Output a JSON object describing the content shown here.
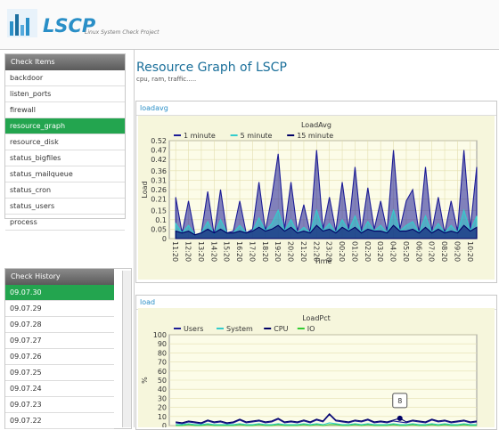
{
  "header": {
    "logo": "LSCP",
    "subtitle": "Linux System Check Project"
  },
  "check_items": {
    "title": "Check Items",
    "items": [
      "backdoor",
      "listen_ports",
      "firewall",
      "resource_graph",
      "resource_disk",
      "status_bigfiles",
      "status_mailqueue",
      "status_cron",
      "status_users",
      "process"
    ],
    "selected": 3
  },
  "check_history": {
    "title": "Check History",
    "items": [
      "09.07.30",
      "09.07.29",
      "09.07.28",
      "09.07.27",
      "09.07.26",
      "09.07.25",
      "09.07.24",
      "09.07.23",
      "09.07.22"
    ],
    "selected": 0
  },
  "main": {
    "title": "Resource Graph of LSCP",
    "subtitle": "cpu, ram, traffic....."
  },
  "panels": [
    "loadavg",
    "load"
  ],
  "chart_data": [
    {
      "type": "area",
      "title": "LoadAvg",
      "xlabel": "Time",
      "ylabel": "Load",
      "grid": true,
      "x": [
        0,
        0.5,
        1,
        1.5,
        2,
        2.5,
        3,
        3.5,
        4,
        4.5,
        5,
        5.5,
        6,
        6.5,
        7,
        7.5,
        8,
        8.5,
        9,
        9.5,
        10,
        10.5,
        11,
        11.5,
        12,
        12.5,
        13,
        13.5,
        14,
        14.5,
        15,
        15.5,
        16,
        16.5,
        17,
        17.5,
        18,
        18.5,
        19,
        19.5,
        20,
        20.5,
        21,
        21.5,
        22,
        22.5,
        23,
        23.5
      ],
      "xlim": [
        -0.5,
        23.5
      ],
      "xticks": [
        {
          "value": 0,
          "label": "11:20"
        },
        {
          "value": 1,
          "label": "12:20"
        },
        {
          "value": 2,
          "label": "13:20"
        },
        {
          "value": 3,
          "label": "14:20"
        },
        {
          "value": 4,
          "label": "15:20"
        },
        {
          "value": 5,
          "label": "16:20"
        },
        {
          "value": 6,
          "label": "17:20"
        },
        {
          "value": 7,
          "label": "18:20"
        },
        {
          "value": 8,
          "label": "19:20"
        },
        {
          "value": 9,
          "label": "20:20"
        },
        {
          "value": 10,
          "label": "21:20"
        },
        {
          "value": 11,
          "label": "22:20"
        },
        {
          "value": 12,
          "label": "23:20"
        },
        {
          "value": 13,
          "label": "00:20"
        },
        {
          "value": 14,
          "label": "01:20"
        },
        {
          "value": 15,
          "label": "02:20"
        },
        {
          "value": 16,
          "label": "03:20"
        },
        {
          "value": 17,
          "label": "04:20"
        },
        {
          "value": 18,
          "label": "05:20"
        },
        {
          "value": 19,
          "label": "06:20"
        },
        {
          "value": 20,
          "label": "07:20"
        },
        {
          "value": 21,
          "label": "08:20"
        },
        {
          "value": 22,
          "label": "09:20"
        },
        {
          "value": 23,
          "label": "10:20"
        }
      ],
      "ylim": [
        0,
        0.52
      ],
      "yticks": [
        0,
        0.05,
        0.1,
        0.15,
        0.21,
        0.26,
        0.31,
        0.36,
        0.42,
        0.47,
        0.52
      ],
      "series": [
        {
          "name": "1 minute",
          "color": "#1c1c96",
          "values": [
            0.22,
            0.03,
            0.2,
            0.02,
            0.03,
            0.25,
            0.02,
            0.26,
            0.03,
            0.04,
            0.2,
            0.03,
            0.05,
            0.3,
            0.04,
            0.22,
            0.45,
            0.05,
            0.3,
            0.04,
            0.18,
            0.03,
            0.47,
            0.05,
            0.22,
            0.04,
            0.3,
            0.05,
            0.38,
            0.04,
            0.27,
            0.05,
            0.2,
            0.04,
            0.47,
            0.05,
            0.2,
            0.26,
            0.03,
            0.38,
            0.04,
            0.22,
            0.03,
            0.2,
            0.04,
            0.47,
            0.05,
            0.38
          ]
        },
        {
          "name": "5 minute",
          "color": "#33cccc",
          "values": [
            0.08,
            0.03,
            0.07,
            0.02,
            0.03,
            0.09,
            0.02,
            0.1,
            0.03,
            0.03,
            0.07,
            0.03,
            0.04,
            0.11,
            0.04,
            0.08,
            0.15,
            0.04,
            0.1,
            0.03,
            0.06,
            0.03,
            0.15,
            0.04,
            0.08,
            0.03,
            0.1,
            0.04,
            0.12,
            0.03,
            0.09,
            0.04,
            0.07,
            0.03,
            0.15,
            0.04,
            0.07,
            0.09,
            0.03,
            0.12,
            0.03,
            0.08,
            0.03,
            0.07,
            0.03,
            0.15,
            0.04,
            0.12
          ]
        },
        {
          "name": "15 minute",
          "color": "#000066",
          "values": [
            0.04,
            0.03,
            0.04,
            0.02,
            0.03,
            0.05,
            0.03,
            0.05,
            0.03,
            0.03,
            0.04,
            0.03,
            0.04,
            0.06,
            0.04,
            0.05,
            0.07,
            0.04,
            0.06,
            0.03,
            0.04,
            0.03,
            0.07,
            0.04,
            0.05,
            0.03,
            0.06,
            0.04,
            0.06,
            0.03,
            0.05,
            0.04,
            0.04,
            0.03,
            0.07,
            0.04,
            0.04,
            0.05,
            0.03,
            0.06,
            0.03,
            0.05,
            0.03,
            0.04,
            0.03,
            0.07,
            0.04,
            0.06
          ]
        }
      ]
    },
    {
      "type": "line",
      "title": "LoadPct",
      "ylabel": "%",
      "grid": true,
      "x": [
        0,
        0.5,
        1,
        1.5,
        2,
        2.5,
        3,
        3.5,
        4,
        4.5,
        5,
        5.5,
        6,
        6.5,
        7,
        7.5,
        8,
        8.5,
        9,
        9.5,
        10,
        10.5,
        11,
        11.5,
        12,
        12.5,
        13,
        13.5,
        14,
        14.5,
        15,
        15.5,
        16,
        16.5,
        17,
        17.5,
        18,
        18.5,
        19,
        19.5,
        20,
        20.5,
        21,
        21.5,
        22,
        22.5,
        23,
        23.5
      ],
      "xlim": [
        -0.5,
        23.5
      ],
      "ylim": [
        0,
        100
      ],
      "yticks": [
        0,
        10,
        20,
        30,
        40,
        50,
        60,
        70,
        80,
        90,
        100
      ],
      "series": [
        {
          "name": "Users",
          "color": "#1c1c96",
          "values": [
            3,
            2,
            4,
            3,
            2,
            5,
            3,
            4,
            2,
            3,
            6,
            3,
            4,
            5,
            3,
            4,
            7,
            3,
            4,
            3,
            5,
            3,
            6,
            4,
            12,
            5,
            4,
            3,
            5,
            4,
            6,
            3,
            4,
            3,
            5,
            4,
            3,
            5,
            4,
            3,
            6,
            4,
            5,
            3,
            4,
            5,
            3,
            4
          ]
        },
        {
          "name": "System",
          "color": "#33cccc",
          "values": [
            1,
            1,
            2,
            1,
            1,
            2,
            1,
            1,
            1,
            1,
            2,
            1,
            1,
            2,
            1,
            1,
            2,
            1,
            1,
            1,
            2,
            1,
            2,
            1,
            3,
            2,
            1,
            1,
            2,
            1,
            2,
            1,
            1,
            1,
            2,
            1,
            1,
            2,
            1,
            1,
            2,
            1,
            2,
            1,
            1,
            2,
            1,
            1
          ]
        },
        {
          "name": "CPU",
          "color": "#000066",
          "values": [
            4,
            3,
            5,
            4,
            3,
            6,
            4,
            5,
            3,
            4,
            7,
            4,
            5,
            6,
            4,
            5,
            8,
            4,
            5,
            4,
            6,
            4,
            7,
            5,
            13,
            6,
            5,
            4,
            6,
            5,
            7,
            4,
            5,
            4,
            6,
            8,
            4,
            6,
            5,
            4,
            7,
            5,
            6,
            4,
            5,
            6,
            4,
            5
          ]
        },
        {
          "name": "IO",
          "color": "#33cc33",
          "values": [
            0,
            0,
            1,
            0,
            0,
            1,
            0,
            0,
            0,
            0,
            1,
            0,
            0,
            1,
            0,
            0,
            1,
            0,
            0,
            0,
            1,
            0,
            1,
            0,
            1,
            1,
            0,
            0,
            1,
            0,
            1,
            0,
            0,
            0,
            1,
            0,
            0,
            1,
            0,
            0,
            1,
            0,
            1,
            0,
            0,
            1,
            0,
            0
          ]
        }
      ],
      "tooltip": {
        "x": 17.5,
        "value": 8
      }
    }
  ]
}
